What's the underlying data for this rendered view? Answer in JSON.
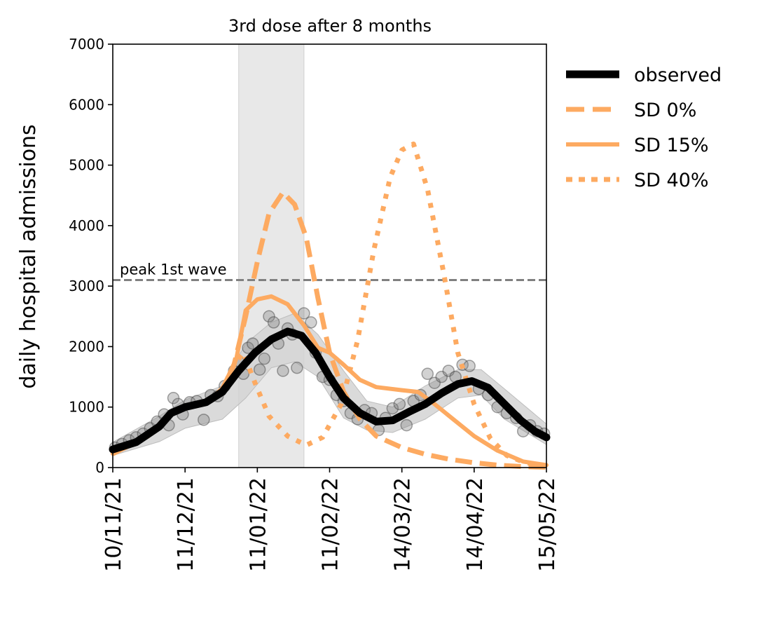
{
  "chart_data": {
    "type": "line",
    "title": "3rd dose after 8 months",
    "xlabel": "",
    "ylabel": "daily hospital admissions",
    "x_ticks": [
      "10/11/21",
      "11/12/21",
      "11/01/22",
      "11/02/22",
      "14/03/22",
      "14/04/22",
      "15/05/22"
    ],
    "x_tick_dates": [
      "2021-11-10",
      "2021-12-11",
      "2022-01-11",
      "2022-02-11",
      "2022-03-14",
      "2022-04-14",
      "2022-05-15"
    ],
    "xlim": [
      "2021-11-10",
      "2022-05-15"
    ],
    "ylim": [
      0,
      7000
    ],
    "y_ticks": [
      0,
      1000,
      2000,
      3000,
      4000,
      5000,
      6000,
      7000
    ],
    "grid": false,
    "legend_position": "outside-right",
    "shaded_period": {
      "start": "2022-01-03",
      "end": "2022-01-31",
      "color": "#e8e8e8"
    },
    "reference_line": {
      "value": 3100,
      "label": "peak 1st wave",
      "color": "#808080"
    },
    "series": [
      {
        "name": "observed",
        "style": "solid-thick",
        "color": "#000000",
        "points": [
          [
            "2021-11-10",
            300
          ],
          [
            "2021-11-20",
            420
          ],
          [
            "2021-11-30",
            680
          ],
          [
            "2021-12-05",
            900
          ],
          [
            "2021-12-11",
            1000
          ],
          [
            "2021-12-20",
            1080
          ],
          [
            "2021-12-27",
            1250
          ],
          [
            "2022-01-03",
            1600
          ],
          [
            "2022-01-10",
            1900
          ],
          [
            "2022-01-17",
            2120
          ],
          [
            "2022-01-24",
            2250
          ],
          [
            "2022-01-30",
            2180
          ],
          [
            "2022-02-05",
            1900
          ],
          [
            "2022-02-11",
            1500
          ],
          [
            "2022-02-17",
            1150
          ],
          [
            "2022-02-24",
            900
          ],
          [
            "2022-03-03",
            760
          ],
          [
            "2022-03-10",
            780
          ],
          [
            "2022-03-17",
            920
          ],
          [
            "2022-03-24",
            1050
          ],
          [
            "2022-03-31",
            1230
          ],
          [
            "2022-04-07",
            1380
          ],
          [
            "2022-04-13",
            1430
          ],
          [
            "2022-04-20",
            1320
          ],
          [
            "2022-04-27",
            1050
          ],
          [
            "2022-05-04",
            780
          ],
          [
            "2022-05-10",
            600
          ],
          [
            "2022-05-15",
            500
          ]
        ]
      },
      {
        "name": "SD 0%",
        "style": "dashed",
        "color": "#fdaa61",
        "points": [
          [
            "2021-11-10",
            230
          ],
          [
            "2021-11-25",
            520
          ],
          [
            "2021-12-05",
            900
          ],
          [
            "2021-12-11",
            980
          ],
          [
            "2021-12-20",
            1060
          ],
          [
            "2021-12-27",
            1300
          ],
          [
            "2022-01-01",
            1700
          ],
          [
            "2022-01-06",
            2500
          ],
          [
            "2022-01-11",
            3400
          ],
          [
            "2022-01-16",
            4200
          ],
          [
            "2022-01-22",
            4550
          ],
          [
            "2022-01-27",
            4350
          ],
          [
            "2022-02-01",
            3800
          ],
          [
            "2022-02-06",
            2800
          ],
          [
            "2022-02-11",
            1900
          ],
          [
            "2022-02-17",
            1250
          ],
          [
            "2022-02-24",
            800
          ],
          [
            "2022-03-03",
            520
          ],
          [
            "2022-03-14",
            330
          ],
          [
            "2022-03-24",
            220
          ],
          [
            "2022-04-03",
            140
          ],
          [
            "2022-04-14",
            80
          ],
          [
            "2022-04-24",
            40
          ],
          [
            "2022-05-05",
            15
          ],
          [
            "2022-05-15",
            5
          ]
        ]
      },
      {
        "name": "SD 15%",
        "style": "solid",
        "color": "#fdaa61",
        "points": [
          [
            "2021-11-10",
            230
          ],
          [
            "2021-11-25",
            520
          ],
          [
            "2021-12-05",
            900
          ],
          [
            "2021-12-11",
            980
          ],
          [
            "2021-12-20",
            1060
          ],
          [
            "2021-12-27",
            1300
          ],
          [
            "2022-01-02",
            1800
          ],
          [
            "2022-01-06",
            2600
          ],
          [
            "2022-01-11",
            2780
          ],
          [
            "2022-01-17",
            2830
          ],
          [
            "2022-01-24",
            2700
          ],
          [
            "2022-01-31",
            2350
          ],
          [
            "2022-02-06",
            1980
          ],
          [
            "2022-02-11",
            1900
          ],
          [
            "2022-02-17",
            1700
          ],
          [
            "2022-02-24",
            1450
          ],
          [
            "2022-03-03",
            1330
          ],
          [
            "2022-03-14",
            1280
          ],
          [
            "2022-03-21",
            1250
          ],
          [
            "2022-03-28",
            1050
          ],
          [
            "2022-04-05",
            800
          ],
          [
            "2022-04-14",
            520
          ],
          [
            "2022-04-24",
            280
          ],
          [
            "2022-05-05",
            100
          ],
          [
            "2022-05-15",
            40
          ]
        ]
      },
      {
        "name": "SD 40%",
        "style": "dotted",
        "color": "#fdaa61",
        "points": [
          [
            "2021-11-10",
            230
          ],
          [
            "2021-11-25",
            520
          ],
          [
            "2021-12-05",
            900
          ],
          [
            "2021-12-11",
            980
          ],
          [
            "2021-12-20",
            1060
          ],
          [
            "2021-12-27",
            1300
          ],
          [
            "2022-01-01",
            1700
          ],
          [
            "2022-01-05",
            1900
          ],
          [
            "2022-01-10",
            1400
          ],
          [
            "2022-01-16",
            850
          ],
          [
            "2022-01-24",
            520
          ],
          [
            "2022-02-01",
            370
          ],
          [
            "2022-02-08",
            500
          ],
          [
            "2022-02-16",
            1050
          ],
          [
            "2022-02-23",
            2100
          ],
          [
            "2022-03-02",
            3600
          ],
          [
            "2022-03-09",
            4800
          ],
          [
            "2022-03-14",
            5250
          ],
          [
            "2022-03-19",
            5350
          ],
          [
            "2022-03-25",
            4600
          ],
          [
            "2022-04-01",
            3200
          ],
          [
            "2022-04-07",
            1900
          ],
          [
            "2022-04-14",
            1050
          ],
          [
            "2022-04-21",
            480
          ],
          [
            "2022-04-28",
            200
          ],
          [
            "2022-05-06",
            80
          ],
          [
            "2022-05-15",
            30
          ]
        ]
      }
    ],
    "observed_band": {
      "color": "#d3d3d3",
      "upper": [
        [
          "2021-11-10",
          420
        ],
        [
          "2021-11-30",
          850
        ],
        [
          "2021-12-11",
          1120
        ],
        [
          "2021-12-27",
          1350
        ],
        [
          "2022-01-06",
          2050
        ],
        [
          "2022-01-17",
          2400
        ],
        [
          "2022-01-27",
          2550
        ],
        [
          "2022-02-06",
          2200
        ],
        [
          "2022-02-17",
          1600
        ],
        [
          "2022-02-27",
          1100
        ],
        [
          "2022-03-10",
          1000
        ],
        [
          "2022-03-24",
          1350
        ],
        [
          "2022-04-07",
          1620
        ],
        [
          "2022-04-17",
          1620
        ],
        [
          "2022-04-27",
          1300
        ],
        [
          "2022-05-15",
          720
        ]
      ],
      "lower": [
        [
          "2022-05-15",
          380
        ],
        [
          "2022-04-27",
          800
        ],
        [
          "2022-04-17",
          1200
        ],
        [
          "2022-04-07",
          1150
        ],
        [
          "2022-03-24",
          800
        ],
        [
          "2022-03-10",
          580
        ],
        [
          "2022-02-27",
          620
        ],
        [
          "2022-02-17",
          820
        ],
        [
          "2022-02-06",
          1500
        ],
        [
          "2022-01-27",
          1750
        ],
        [
          "2022-01-17",
          1650
        ],
        [
          "2022-01-06",
          1150
        ],
        [
          "2021-12-27",
          800
        ],
        [
          "2021-12-11",
          650
        ],
        [
          "2021-11-30",
          430
        ],
        [
          "2021-11-10",
          200
        ]
      ]
    },
    "observed_points": {
      "color": "#7f7f7f",
      "points": [
        [
          "2021-11-11",
          330
        ],
        [
          "2021-11-14",
          390
        ],
        [
          "2021-11-17",
          450
        ],
        [
          "2021-11-20",
          500
        ],
        [
          "2021-11-23",
          560
        ],
        [
          "2021-11-26",
          650
        ],
        [
          "2021-11-29",
          760
        ],
        [
          "2021-12-02",
          880
        ],
        [
          "2021-12-04",
          700
        ],
        [
          "2021-12-06",
          1150
        ],
        [
          "2021-12-08",
          1050
        ],
        [
          "2021-12-10",
          880
        ],
        [
          "2021-12-13",
          1080
        ],
        [
          "2021-12-16",
          1100
        ],
        [
          "2021-12-19",
          790
        ],
        [
          "2021-12-22",
          1200
        ],
        [
          "2021-12-25",
          1180
        ],
        [
          "2021-12-28",
          1350
        ],
        [
          "2022-01-01",
          1600
        ],
        [
          "2022-01-03",
          1750
        ],
        [
          "2022-01-05",
          1550
        ],
        [
          "2022-01-07",
          1980
        ],
        [
          "2022-01-09",
          2050
        ],
        [
          "2022-01-12",
          1620
        ],
        [
          "2022-01-14",
          1800
        ],
        [
          "2022-01-16",
          2500
        ],
        [
          "2022-01-18",
          2400
        ],
        [
          "2022-01-20",
          2050
        ],
        [
          "2022-01-22",
          1600
        ],
        [
          "2022-01-24",
          2300
        ],
        [
          "2022-01-26",
          2200
        ],
        [
          "2022-01-28",
          1650
        ],
        [
          "2022-01-31",
          2550
        ],
        [
          "2022-02-03",
          2400
        ],
        [
          "2022-02-05",
          1900
        ],
        [
          "2022-02-08",
          1500
        ],
        [
          "2022-02-11",
          1450
        ],
        [
          "2022-02-14",
          1200
        ],
        [
          "2022-02-17",
          1100
        ],
        [
          "2022-02-20",
          900
        ],
        [
          "2022-02-23",
          800
        ],
        [
          "2022-02-26",
          950
        ],
        [
          "2022-03-01",
          900
        ],
        [
          "2022-03-04",
          620
        ],
        [
          "2022-03-07",
          820
        ],
        [
          "2022-03-10",
          980
        ],
        [
          "2022-03-13",
          1050
        ],
        [
          "2022-03-16",
          700
        ],
        [
          "2022-03-19",
          1100
        ],
        [
          "2022-03-22",
          1200
        ],
        [
          "2022-03-25",
          1550
        ],
        [
          "2022-03-28",
          1400
        ],
        [
          "2022-03-31",
          1500
        ],
        [
          "2022-04-03",
          1600
        ],
        [
          "2022-04-06",
          1500
        ],
        [
          "2022-04-09",
          1700
        ],
        [
          "2022-04-12",
          1680
        ],
        [
          "2022-04-16",
          1300
        ],
        [
          "2022-04-20",
          1200
        ],
        [
          "2022-04-24",
          1000
        ],
        [
          "2022-04-28",
          900
        ],
        [
          "2022-05-02",
          820
        ],
        [
          "2022-05-05",
          600
        ],
        [
          "2022-05-08",
          700
        ],
        [
          "2022-05-11",
          600
        ],
        [
          "2022-05-14",
          560
        ]
      ]
    }
  }
}
